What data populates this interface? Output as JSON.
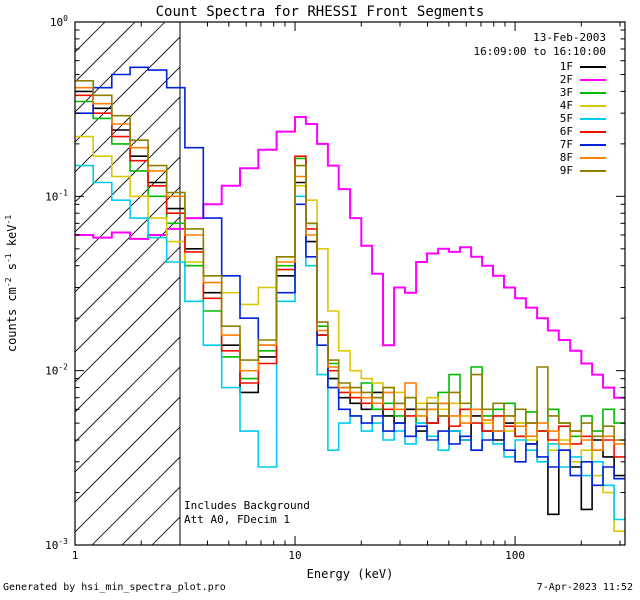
{
  "title": "Count Spectra for RHESSI Front Segments",
  "header": {
    "date": "13-Feb-2003",
    "time_range": "16:09:00 to 16:10:00"
  },
  "annotations": {
    "background": "Includes Background",
    "attenuator": "Att A0, FDecim 1"
  },
  "footer": {
    "generated_by": "Generated by hsi_min_spectra_plot.pro",
    "timestamp": "7-Apr-2023 11:52"
  },
  "style": {
    "background": "#FFFFFF",
    "axis_color": "#000000"
  },
  "axes": {
    "x": {
      "label": "Energy (keV)",
      "scale": "log",
      "min": 1,
      "max": 316,
      "ticks": [
        {
          "value": 1,
          "label": "1"
        },
        {
          "value": 10,
          "label": "10"
        },
        {
          "value": 100,
          "label": "100"
        }
      ]
    },
    "y": {
      "label": "counts cm^{-2} s^{-1} keV^{-1}",
      "scale": "log",
      "min": 0.001,
      "max": 1,
      "ticks": [
        {
          "value": 1,
          "label": "10^{0}"
        },
        {
          "value": 0.1,
          "label": "10^{-1}"
        },
        {
          "value": 0.01,
          "label": "10^{-2}"
        },
        {
          "value": 0.001,
          "label": "10^{-3}"
        }
      ]
    }
  },
  "hatch_region": {
    "from_kev": 1.0,
    "to_kev": 3.0
  },
  "chart_data": {
    "type": "line",
    "mode": "histogram-step",
    "x_unit": "keV",
    "y_unit": "counts cm-2 s-1 keV-1",
    "legend_position": "top-right",
    "x_bin_edges_kev": [
      1.0,
      1.21,
      1.47,
      1.78,
      2.15,
      2.61,
      3.16,
      3.83,
      4.64,
      5.62,
      6.81,
      8.25,
      10.0,
      11.2,
      12.6,
      14.1,
      15.8,
      17.8,
      20.0,
      22.4,
      25.1,
      28.2,
      31.6,
      35.5,
      39.8,
      44.7,
      50.1,
      56.2,
      63.1,
      70.8,
      79.4,
      89.1,
      100,
      112,
      126,
      141,
      158,
      178,
      200,
      224,
      251,
      282,
      316
    ],
    "series": [
      {
        "name": "1F",
        "color": "#000000",
        "line_width": 1.6,
        "values": [
          0.4,
          0.32,
          0.24,
          0.17,
          0.12,
          0.085,
          0.05,
          0.028,
          0.014,
          0.0075,
          0.012,
          0.035,
          0.12,
          0.055,
          0.016,
          0.009,
          0.007,
          0.0065,
          0.006,
          0.0075,
          0.0055,
          0.005,
          0.006,
          0.0045,
          0.005,
          0.0065,
          0.0045,
          0.004,
          0.0055,
          0.0045,
          0.004,
          0.005,
          0.0042,
          0.0038,
          0.0045,
          0.0015,
          0.0035,
          0.0028,
          0.0016,
          0.004,
          0.0032,
          0.0025
        ]
      },
      {
        "name": "2F",
        "color": "#FF00FF",
        "line_width": 2.0,
        "values": [
          0.06,
          0.058,
          0.062,
          0.057,
          0.06,
          0.065,
          0.075,
          0.09,
          0.115,
          0.145,
          0.185,
          0.235,
          0.285,
          0.26,
          0.2,
          0.15,
          0.11,
          0.075,
          0.052,
          0.036,
          0.014,
          0.03,
          0.028,
          0.042,
          0.047,
          0.05,
          0.048,
          0.051,
          0.045,
          0.04,
          0.035,
          0.03,
          0.026,
          0.023,
          0.02,
          0.017,
          0.015,
          0.013,
          0.011,
          0.0095,
          0.008,
          0.007
        ]
      },
      {
        "name": "3F",
        "color": "#00BB00",
        "line_width": 1.6,
        "values": [
          0.35,
          0.28,
          0.2,
          0.14,
          0.1,
          0.07,
          0.04,
          0.022,
          0.012,
          0.009,
          0.013,
          0.04,
          0.165,
          0.07,
          0.018,
          0.011,
          0.008,
          0.007,
          0.0085,
          0.006,
          0.0065,
          0.0055,
          0.007,
          0.005,
          0.006,
          0.0075,
          0.0095,
          0.006,
          0.0105,
          0.0055,
          0.006,
          0.0065,
          0.005,
          0.0058,
          0.0045,
          0.006,
          0.005,
          0.0042,
          0.0055,
          0.0045,
          0.006,
          0.005
        ]
      },
      {
        "name": "4F",
        "color": "#DCC800",
        "line_width": 1.6,
        "values": [
          0.22,
          0.17,
          0.13,
          0.1,
          0.075,
          0.055,
          0.042,
          0.035,
          0.028,
          0.024,
          0.03,
          0.045,
          0.115,
          0.095,
          0.05,
          0.022,
          0.013,
          0.01,
          0.009,
          0.0085,
          0.008,
          0.0075,
          0.007,
          0.0065,
          0.007,
          0.006,
          0.0065,
          0.0055,
          0.006,
          0.005,
          0.0055,
          0.0045,
          0.005,
          0.004,
          0.0045,
          0.0035,
          0.004,
          0.003,
          0.0035,
          0.0025,
          0.002,
          0.0012
        ]
      },
      {
        "name": "5F",
        "color": "#00CCEE",
        "line_width": 1.6,
        "values": [
          0.15,
          0.12,
          0.095,
          0.075,
          0.058,
          0.042,
          0.025,
          0.014,
          0.008,
          0.0045,
          0.0028,
          0.025,
          0.1,
          0.04,
          0.0095,
          0.0035,
          0.005,
          0.0055,
          0.0045,
          0.005,
          0.004,
          0.0045,
          0.0038,
          0.005,
          0.0042,
          0.0035,
          0.0045,
          0.004,
          0.0035,
          0.0045,
          0.0038,
          0.0032,
          0.004,
          0.0035,
          0.003,
          0.0038,
          0.0028,
          0.0032,
          0.0025,
          0.003,
          0.0022,
          0.0014
        ]
      },
      {
        "name": "6F",
        "color": "#EE1100",
        "line_width": 1.6,
        "values": [
          0.38,
          0.3,
          0.22,
          0.16,
          0.115,
          0.08,
          0.048,
          0.026,
          0.013,
          0.0085,
          0.011,
          0.038,
          0.17,
          0.065,
          0.016,
          0.01,
          0.0075,
          0.007,
          0.0065,
          0.007,
          0.006,
          0.0065,
          0.0055,
          0.006,
          0.005,
          0.0055,
          0.0048,
          0.006,
          0.005,
          0.0045,
          0.0055,
          0.0048,
          0.0042,
          0.005,
          0.0045,
          0.004,
          0.0048,
          0.0038,
          0.0042,
          0.0035,
          0.004,
          0.0032
        ]
      },
      {
        "name": "7F",
        "color": "#0022DD",
        "line_width": 1.6,
        "values": [
          0.3,
          0.42,
          0.5,
          0.55,
          0.53,
          0.42,
          0.19,
          0.075,
          0.035,
          0.02,
          0.014,
          0.028,
          0.09,
          0.045,
          0.014,
          0.008,
          0.006,
          0.0055,
          0.005,
          0.0055,
          0.0045,
          0.005,
          0.0042,
          0.0048,
          0.004,
          0.0045,
          0.0038,
          0.0042,
          0.0035,
          0.004,
          0.0045,
          0.0035,
          0.003,
          0.0038,
          0.0032,
          0.0028,
          0.0035,
          0.0025,
          0.003,
          0.0022,
          0.0028,
          0.0024
        ]
      },
      {
        "name": "8F",
        "color": "#FF8000",
        "line_width": 1.6,
        "values": [
          0.42,
          0.34,
          0.26,
          0.19,
          0.14,
          0.1,
          0.06,
          0.032,
          0.016,
          0.01,
          0.014,
          0.042,
          0.13,
          0.06,
          0.017,
          0.0105,
          0.008,
          0.0075,
          0.007,
          0.0065,
          0.0075,
          0.006,
          0.0085,
          0.0055,
          0.006,
          0.0065,
          0.0055,
          0.005,
          0.006,
          0.0052,
          0.0045,
          0.0055,
          0.0048,
          0.0042,
          0.005,
          0.0045,
          0.0038,
          0.0045,
          0.004,
          0.0035,
          0.0042,
          0.0038
        ]
      },
      {
        "name": "9F",
        "color": "#8F7F00",
        "line_width": 1.6,
        "values": [
          0.46,
          0.38,
          0.29,
          0.21,
          0.15,
          0.105,
          0.065,
          0.035,
          0.018,
          0.0115,
          0.015,
          0.045,
          0.15,
          0.07,
          0.019,
          0.0115,
          0.0085,
          0.008,
          0.0075,
          0.007,
          0.008,
          0.0065,
          0.007,
          0.006,
          0.0065,
          0.0055,
          0.0075,
          0.0065,
          0.0095,
          0.006,
          0.0065,
          0.0055,
          0.006,
          0.005,
          0.0105,
          0.0055,
          0.005,
          0.0045,
          0.005,
          0.0042,
          0.0048,
          0.004
        ]
      }
    ]
  }
}
